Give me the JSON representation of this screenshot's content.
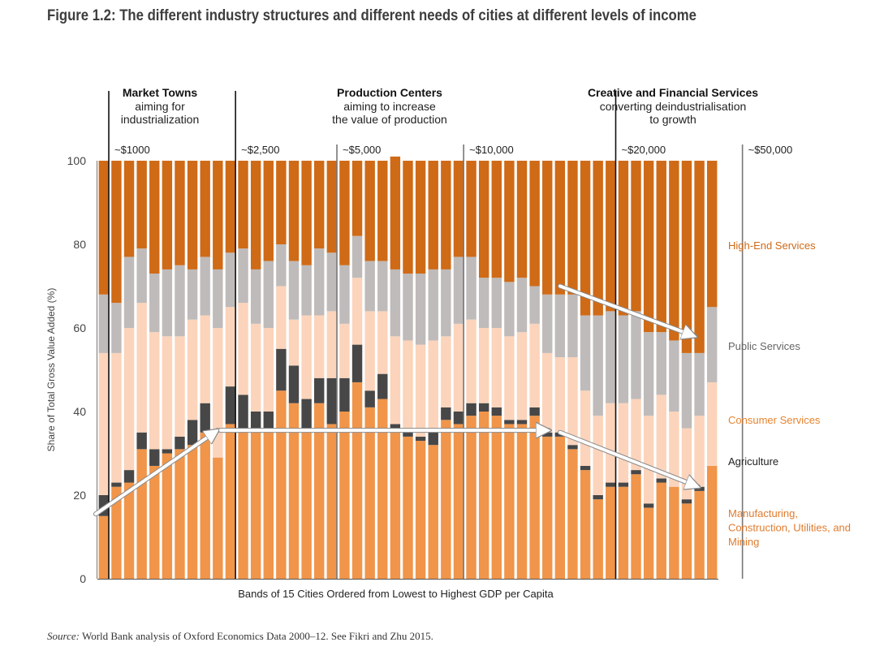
{
  "figure_title": "Figure 1.2: The different industry structures and different needs of cities at different levels of income",
  "source": {
    "label": "Source:",
    "text": "World Bank analysis of Oxford Economics Data 2000–12. See Fikri and Zhu 2015."
  },
  "chart_data": {
    "type": "bar",
    "stacked": true,
    "xlabel": "Bands of 15 Cities Ordered from Lowest to Highest GDP per Capita",
    "ylabel": "Share of Total Gross Value Added (%)",
    "ylim": [
      0,
      100
    ],
    "yticks": [
      0,
      20,
      40,
      60,
      80,
      100
    ],
    "grid": false,
    "legend_position": "right",
    "groups": [
      {
        "title": "Market Towns",
        "subtitle": [
          "aiming for",
          "industrialization"
        ]
      },
      {
        "title": "Production Centers",
        "subtitle": [
          "aiming to increase",
          "the value of production"
        ]
      },
      {
        "title": "Creative and Financial Services",
        "subtitle": [
          "converting deindustrialisation",
          "to growth"
        ]
      }
    ],
    "income_markers": [
      {
        "label": "~$1000",
        "after_band": 1
      },
      {
        "label": "~$2,500",
        "after_band": 11
      },
      {
        "label": "~$5,000",
        "after_band": 19
      },
      {
        "label": "~$10,000",
        "after_band": 29
      },
      {
        "label": "~$20,000",
        "after_band": 41
      },
      {
        "label": "~$50,000",
        "after_band": 51
      }
    ],
    "series": [
      {
        "name": "Manufacturing, Construction, Utilities, and Mining",
        "color": "#f0954a",
        "values": [
          15,
          22,
          23,
          31,
          27,
          30,
          31,
          32,
          35,
          29,
          37,
          35,
          35,
          35,
          45,
          42,
          36,
          42,
          37,
          40,
          47,
          41,
          43,
          36,
          34,
          33,
          32,
          38,
          37,
          39,
          40,
          39,
          37,
          37,
          39,
          34,
          34,
          31,
          26,
          19,
          22,
          22,
          25,
          17,
          23,
          22,
          18,
          21,
          27
        ]
      },
      {
        "name": "Agriculture",
        "color": "#474747",
        "values": [
          5,
          1,
          3,
          4,
          4,
          1,
          3,
          6,
          7,
          0,
          9,
          9,
          5,
          5,
          10,
          9,
          7,
          6,
          11,
          8,
          9,
          4,
          6,
          1,
          2,
          1,
          3,
          3,
          3,
          3,
          2,
          2,
          1,
          1,
          2,
          1,
          1,
          1,
          1,
          1,
          1,
          1,
          1,
          1,
          1,
          0,
          1,
          1,
          0
        ]
      },
      {
        "name": "Consumer Services",
        "color": "#fbd4bb",
        "values": [
          34,
          31,
          34,
          31,
          28,
          27,
          24,
          24,
          21,
          31,
          19,
          22,
          21,
          20,
          15,
          11,
          20,
          15,
          16,
          13,
          16,
          19,
          15,
          21,
          21,
          22,
          22,
          17,
          21,
          20,
          18,
          19,
          20,
          21,
          20,
          19,
          18,
          21,
          18,
          19,
          19,
          19,
          17,
          21,
          20,
          18,
          17,
          17,
          20
        ]
      },
      {
        "name": "Public Services",
        "color": "#bfbbba",
        "values": [
          14,
          12,
          17,
          13,
          14,
          16,
          17,
          12,
          14,
          14,
          13,
          13,
          13,
          16,
          10,
          14,
          12,
          16,
          14,
          14,
          10,
          12,
          12,
          16,
          16,
          17,
          17,
          16,
          16,
          15,
          12,
          12,
          13,
          13,
          9,
          14,
          15,
          15,
          18,
          24,
          22,
          21,
          21,
          20,
          15,
          17,
          18,
          15,
          18
        ]
      },
      {
        "name": "High-End Services",
        "color": "#cf6a17",
        "values": [
          32,
          34,
          23,
          21,
          27,
          26,
          25,
          26,
          23,
          26,
          22,
          21,
          26,
          24,
          20,
          24,
          25,
          21,
          22,
          25,
          18,
          24,
          24,
          27,
          27,
          27,
          26,
          26,
          23,
          23,
          28,
          28,
          29,
          28,
          30,
          32,
          32,
          32,
          37,
          37,
          36,
          37,
          36,
          41,
          41,
          43,
          46,
          46,
          35
        ]
      }
    ]
  }
}
